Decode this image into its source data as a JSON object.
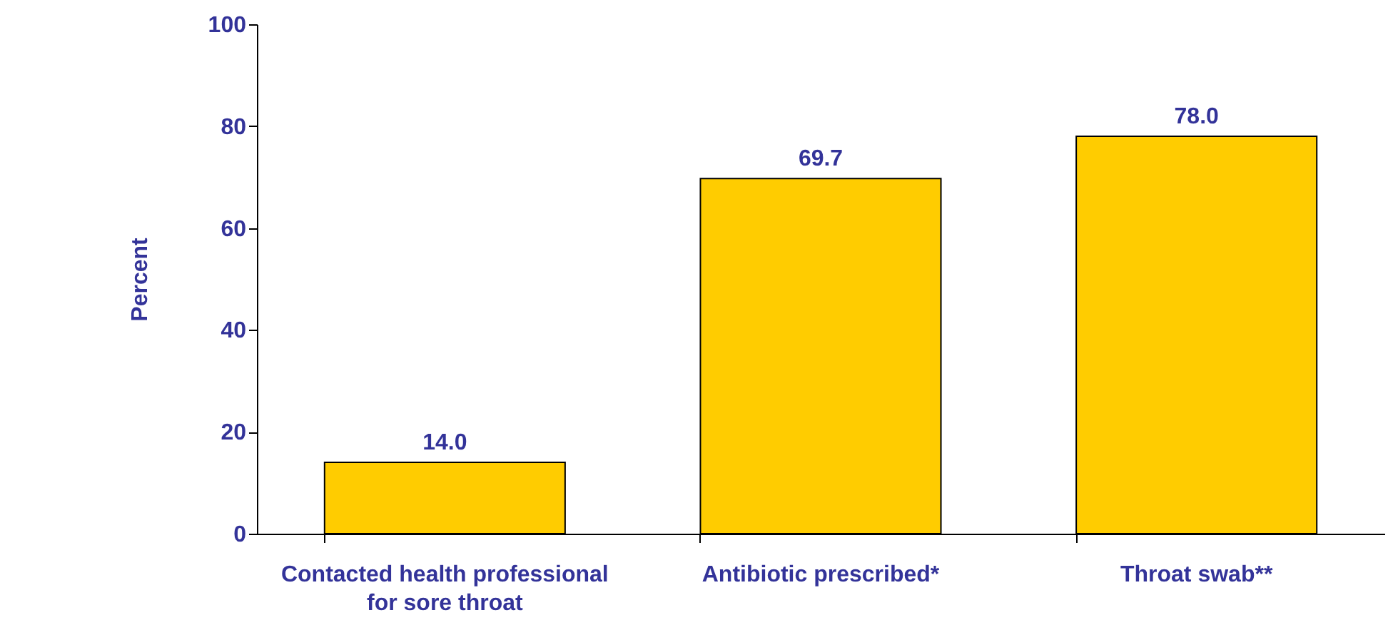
{
  "chart_data": {
    "type": "bar",
    "ylabel": "Percent",
    "categories": [
      "Contacted health professional for sore throat",
      "Antibiotic prescribed*",
      "Throat swab**"
    ],
    "values": [
      14.0,
      69.7,
      78.0
    ],
    "color": "#ffcc00",
    "value_labels": [
      "14.0",
      "69.7",
      "78.0"
    ],
    "ylim": [
      0,
      100
    ],
    "yticks": [
      0,
      20,
      40,
      60,
      80,
      100
    ],
    "grid": false
  }
}
